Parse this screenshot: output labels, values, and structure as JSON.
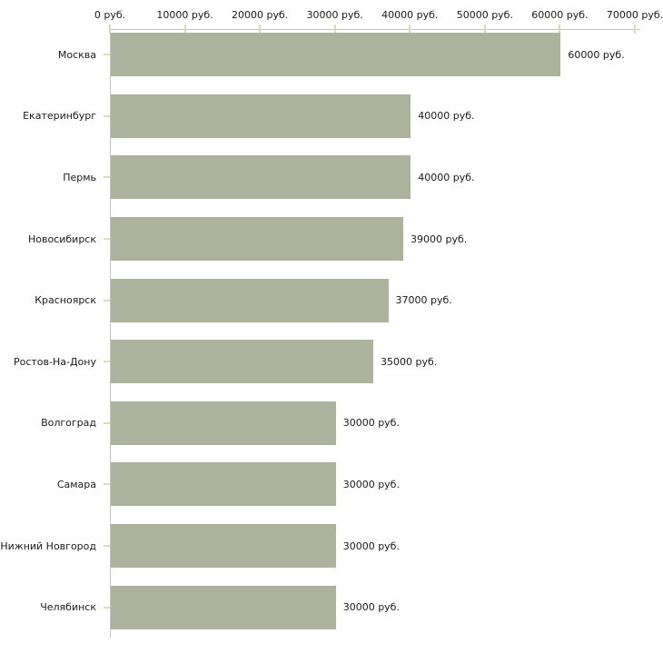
{
  "chart_data": {
    "type": "bar",
    "orientation": "horizontal",
    "title": "",
    "xlabel": "",
    "ylabel": "",
    "unit": "руб.",
    "categories": [
      "Москва",
      "Екатеринбург",
      "Пермь",
      "Новосибирск",
      "Красноярск",
      "Ростов-На-Дону",
      "Волгоград",
      "Самара",
      "Нижний Новгород",
      "Челябинск"
    ],
    "values": [
      60000,
      40000,
      40000,
      39000,
      37000,
      35000,
      30000,
      30000,
      30000,
      30000
    ],
    "value_labels": [
      "60000 руб.",
      "40000 руб.",
      "40000 руб.",
      "39000 руб.",
      "37000 руб.",
      "35000 руб.",
      "30000 руб.",
      "30000 руб.",
      "30000 руб.",
      "30000 руб."
    ],
    "x_ticks": [
      0,
      10000,
      20000,
      30000,
      40000,
      50000,
      60000,
      70000
    ],
    "x_tick_labels": [
      "0 руб.",
      "10000 руб.",
      "20000 руб.",
      "30000 руб.",
      "40000 руб.",
      "50000 руб.",
      "60000 руб.",
      "70000 руб."
    ],
    "xlim": [
      0,
      70000
    ],
    "grid": false,
    "legend": "none",
    "colors": {
      "bar": "#acb29b",
      "axis": "#c3c3c3",
      "tick": "#d9dcb6",
      "text": "#1a1a1a",
      "background": "#ffffff"
    }
  }
}
